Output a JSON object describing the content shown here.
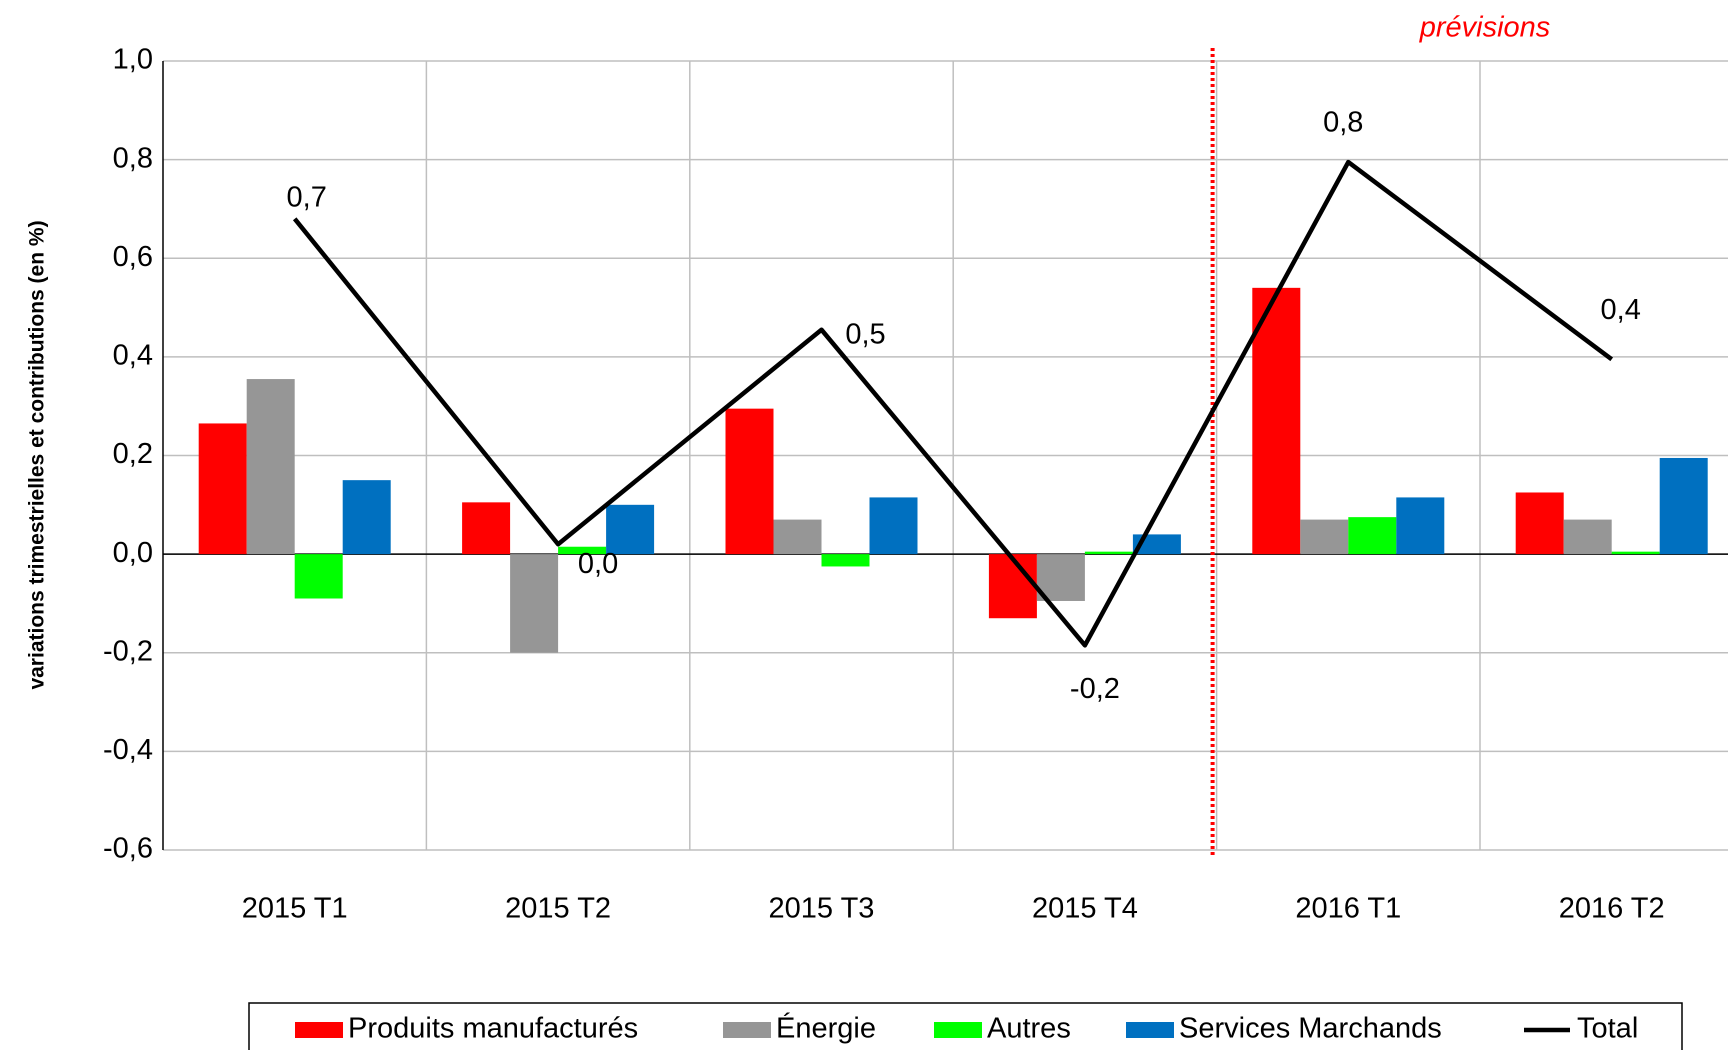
{
  "chart_data": {
    "type": "bar",
    "y_axis_label": "variations trimestrielles et contributions (en %)",
    "annotation": "prévisions",
    "categories": [
      "2015 T1",
      "2015 T2",
      "2015 T3",
      "2015 T4",
      "2016 T1",
      "2016 T2"
    ],
    "series": [
      {
        "name": "Produits manufacturés",
        "color": "#ff0000",
        "values": [
          0.265,
          0.105,
          0.295,
          -0.13,
          0.54,
          0.125
        ]
      },
      {
        "name": "Énergie",
        "color": "#969696",
        "values": [
          0.355,
          -0.2,
          0.07,
          -0.095,
          0.07,
          0.07
        ]
      },
      {
        "name": "Autres",
        "color": "#00ff00",
        "values": [
          -0.09,
          0.015,
          -0.025,
          0.005,
          0.075,
          0.005
        ]
      },
      {
        "name": "Services Marchands",
        "color": "#0070c0",
        "values": [
          0.15,
          0.1,
          0.115,
          0.04,
          0.115,
          0.195
        ]
      },
      {
        "name": "Total",
        "color": "#000000",
        "type": "line",
        "values": [
          0.68,
          0.02,
          0.455,
          -0.185,
          0.795,
          0.395
        ],
        "value_labels": [
          "0,7",
          "0,0",
          "0,5",
          "-0,2",
          "0,8",
          "0,4"
        ]
      }
    ],
    "ylim": [
      -0.6,
      1.0
    ],
    "yticks": [
      {
        "value": -0.6,
        "label": "-0,6"
      },
      {
        "value": -0.4,
        "label": "-0,4"
      },
      {
        "value": -0.2,
        "label": "-0,2"
      },
      {
        "value": 0,
        "label": "0,0"
      },
      {
        "value": 0.2,
        "label": "0,2"
      },
      {
        "value": 0.4,
        "label": "0,4"
      },
      {
        "value": 0.6,
        "label": "0,6"
      },
      {
        "value": 0.8,
        "label": "0,8"
      },
      {
        "value": 1.0,
        "label": "1,0"
      }
    ],
    "grid": true,
    "legend": "bottom"
  }
}
